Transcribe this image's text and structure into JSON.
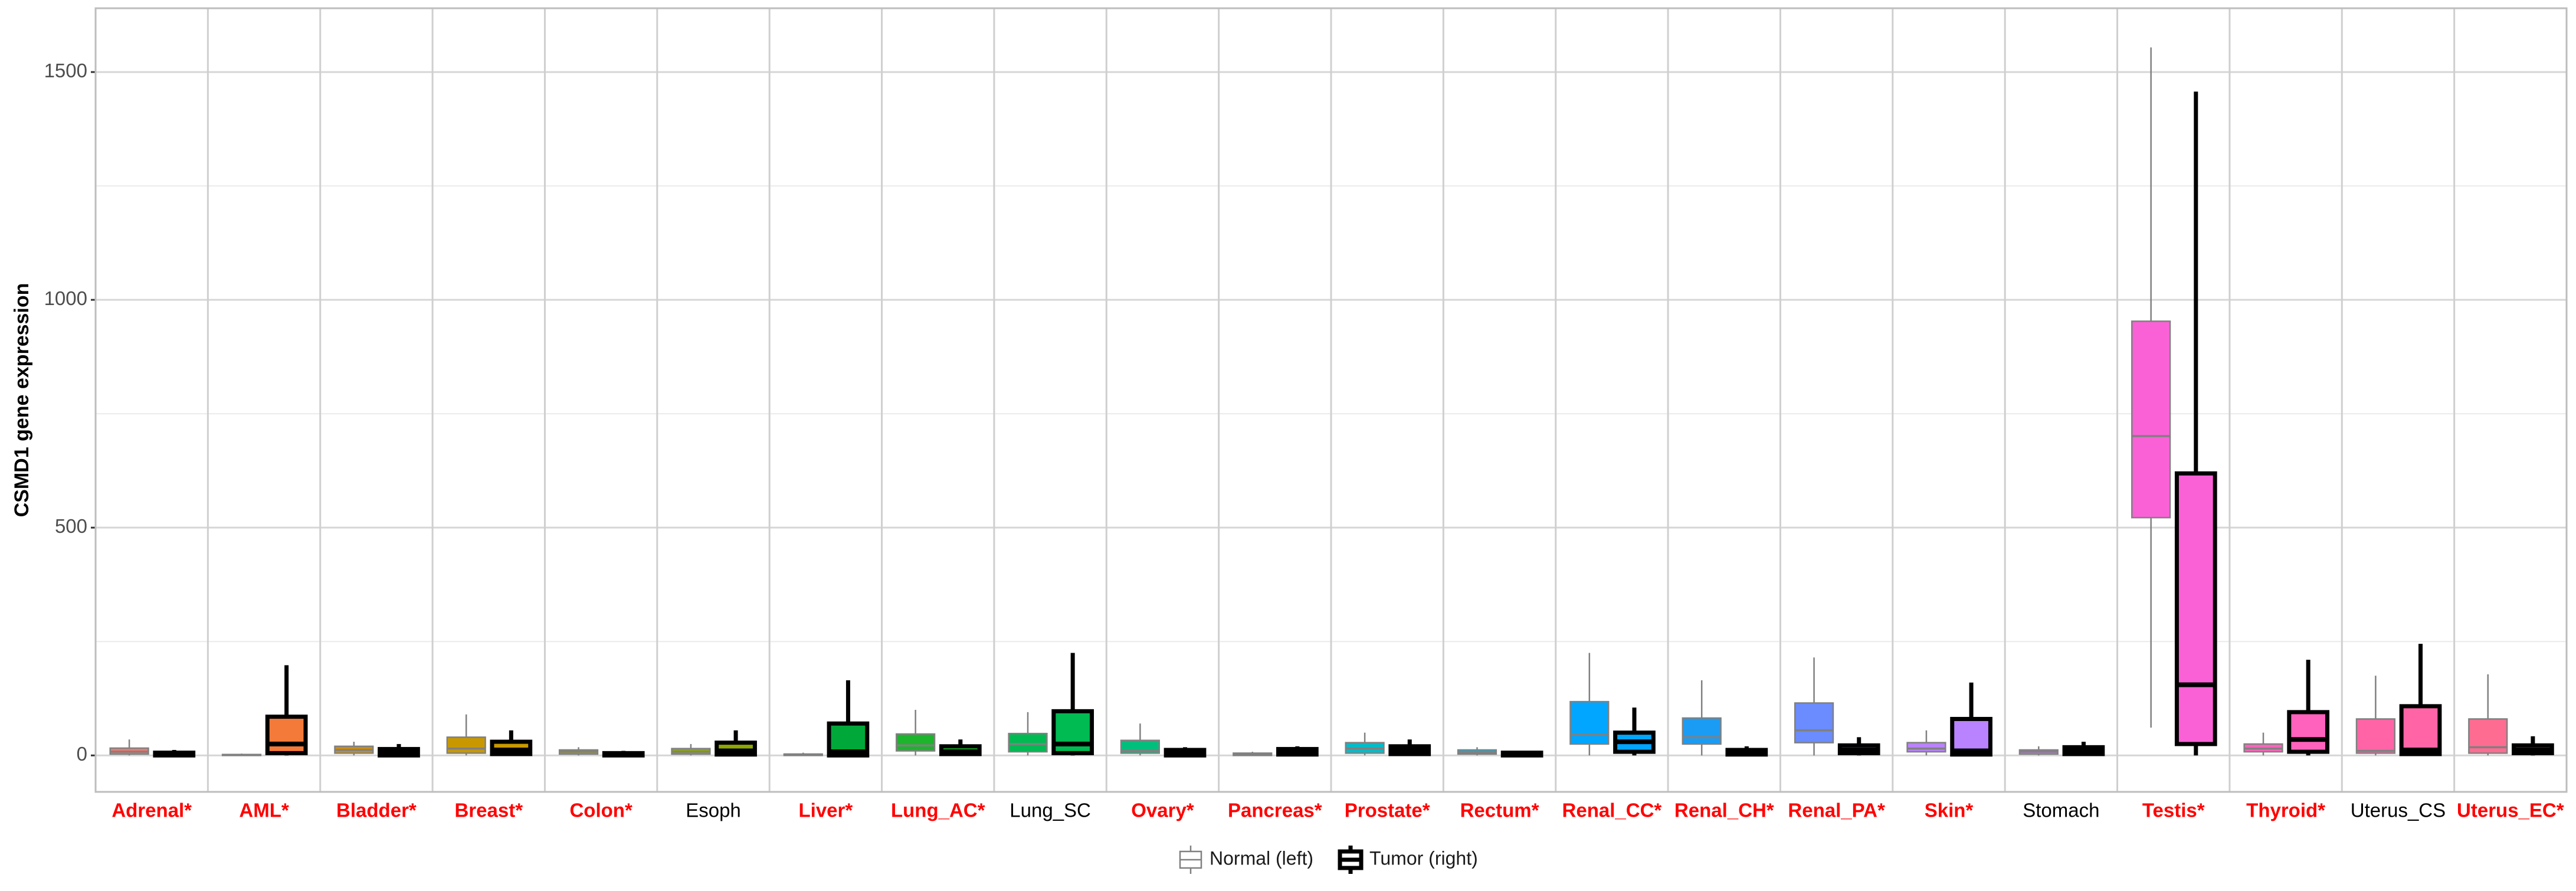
{
  "chart_data": {
    "type": "box",
    "y_label": "CSMD1 gene expression",
    "categories": [
      "Adrenal*",
      "AML*",
      "Bladder*",
      "Breast*",
      "Colon*",
      "Esoph",
      "Liver*",
      "Lung_AC*",
      "Lung_SC",
      "Ovary*",
      "Pancreas*",
      "Prostate*",
      "Rectum*",
      "Renal_CC*",
      "Renal_CH*",
      "Renal_PA*",
      "Skin*",
      "Stomach",
      "Testis*",
      "Thyroid*",
      "Uterus_CS",
      "Uterus_EC*"
    ],
    "label_colors": [
      "#ff0000",
      "#ff0000",
      "#ff0000",
      "#ff0000",
      "#ff0000",
      "#000000",
      "#ff0000",
      "#ff0000",
      "#000000",
      "#ff0000",
      "#ff0000",
      "#ff0000",
      "#ff0000",
      "#ff0000",
      "#ff0000",
      "#ff0000",
      "#ff0000",
      "#000000",
      "#ff0000",
      "#ff0000",
      "#000000",
      "#ff0000"
    ],
    "category_colors": [
      "#f8766d",
      "#f47a3a",
      "#d48e00",
      "#c99800",
      "#a7a300",
      "#8fa800",
      "#00a83a",
      "#1cb52c",
      "#00ba52",
      "#00bf7d",
      "#00c0a3",
      "#00bcc8",
      "#00b5e5",
      "#00a6ff",
      "#1a9cf5",
      "#6a8cff",
      "#b983ff",
      "#d575fe",
      "#fb61d7",
      "#ff62bc",
      "#ff65a6",
      "#ff6c91"
    ],
    "series": [
      {
        "name": "Normal (left)",
        "color": "#808080",
        "values": [
          [
            0,
            3,
            8,
            16,
            35
          ],
          [
            0,
            0,
            1,
            2,
            4
          ],
          [
            0,
            5,
            12,
            20,
            30
          ],
          [
            0,
            5,
            15,
            40,
            90
          ],
          [
            0,
            3,
            8,
            12,
            18
          ],
          [
            0,
            3,
            8,
            15,
            25
          ],
          [
            0,
            0,
            2,
            3,
            6
          ],
          [
            0,
            10,
            22,
            47,
            100
          ],
          [
            0,
            8,
            25,
            48,
            95
          ],
          [
            0,
            5,
            10,
            33,
            70
          ],
          [
            0,
            0,
            3,
            5,
            8
          ],
          [
            0,
            5,
            15,
            28,
            50
          ],
          [
            0,
            3,
            7,
            12,
            18
          ],
          [
            0,
            25,
            45,
            118,
            225
          ],
          [
            0,
            25,
            40,
            82,
            165
          ],
          [
            0,
            28,
            55,
            115,
            215
          ],
          [
            0,
            8,
            15,
            28,
            55
          ],
          [
            0,
            3,
            8,
            12,
            20
          ],
          [
            61,
            522,
            701,
            953,
            1554
          ],
          [
            0,
            8,
            15,
            25,
            50
          ],
          [
            0,
            5,
            10,
            80,
            175
          ],
          [
            0,
            5,
            18,
            80,
            178
          ]
        ]
      },
      {
        "name": "Tumor (right)",
        "color": "#000000",
        "values": [
          [
            0,
            0,
            2,
            6,
            12
          ],
          [
            0,
            5,
            25,
            85,
            198
          ],
          [
            0,
            0,
            5,
            14,
            25
          ],
          [
            0,
            3,
            12,
            30,
            55
          ],
          [
            0,
            0,
            2,
            5,
            10
          ],
          [
            0,
            2,
            10,
            28,
            55
          ],
          [
            0,
            0,
            8,
            70,
            165
          ],
          [
            0,
            3,
            8,
            20,
            35
          ],
          [
            0,
            5,
            25,
            97,
            225
          ],
          [
            0,
            0,
            5,
            12,
            18
          ],
          [
            0,
            2,
            8,
            14,
            20
          ],
          [
            0,
            3,
            12,
            20,
            35
          ],
          [
            0,
            0,
            3,
            6,
            10
          ],
          [
            0,
            8,
            30,
            50,
            105
          ],
          [
            0,
            2,
            6,
            12,
            20
          ],
          [
            0,
            5,
            12,
            22,
            40
          ],
          [
            0,
            2,
            10,
            80,
            160
          ],
          [
            0,
            3,
            10,
            18,
            30
          ],
          [
            0,
            25,
            155,
            619,
            1457
          ],
          [
            0,
            8,
            35,
            95,
            210
          ],
          [
            0,
            3,
            12,
            108,
            245
          ],
          [
            0,
            5,
            12,
            22,
            42
          ]
        ]
      }
    ],
    "ylim": [
      -80,
      1640
    ],
    "yticks": [
      0,
      500,
      1000,
      1500
    ],
    "minor_yticks": [
      250,
      750,
      1250
    ],
    "grid": true,
    "legend": "bottom"
  }
}
